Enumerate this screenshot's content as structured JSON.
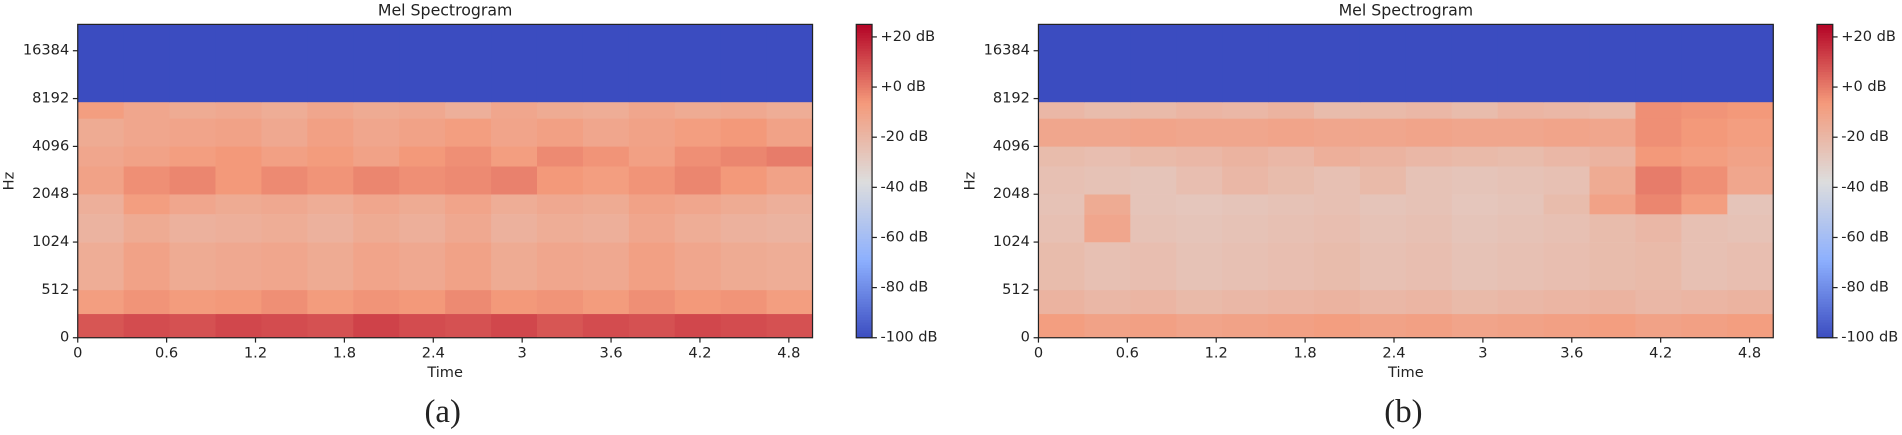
{
  "chart_data": [
    {
      "type": "heatmap",
      "title": "Mel Spectrogram",
      "xlabel": "Time",
      "ylabel": "Hz",
      "caption": "(a)",
      "xlim": [
        0,
        4.96
      ],
      "xticks": [
        0,
        0.6,
        1.2,
        1.8,
        2.4,
        3,
        3.6,
        4.2,
        4.8
      ],
      "ylim": [
        0,
        24000
      ],
      "yticks": [
        0,
        512,
        1024,
        2048,
        4096,
        8192,
        16384
      ],
      "yscale": "symlog",
      "linthresh": 512,
      "cmap": "coolwarm",
      "clim": [
        -100,
        25
      ],
      "cticks": [
        {
          "value": 20,
          "label": "+20 dB"
        },
        {
          "value": 0,
          "label": "+0 dB"
        },
        {
          "value": -20,
          "label": "-20 dB"
        },
        {
          "value": -40,
          "label": "-40 dB"
        },
        {
          "value": -60,
          "label": "-60 dB"
        },
        {
          "value": -80,
          "label": "-80 dB"
        },
        {
          "value": -100,
          "label": "-100 dB"
        }
      ],
      "x_bins": [
        0,
        0.31,
        0.62,
        0.93,
        1.24,
        1.55,
        1.86,
        2.17,
        2.48,
        2.79,
        3.1,
        3.41,
        3.72,
        4.03,
        4.34,
        4.65,
        4.96
      ],
      "y_bins": [
        0,
        256,
        512,
        1024,
        1536,
        2048,
        3072,
        4096,
        6144,
        7800,
        24000
      ],
      "z": [
        [
          8,
          10,
          9,
          11,
          10,
          9,
          12,
          10,
          9,
          11,
          8,
          10,
          9,
          11,
          10,
          9
        ],
        [
          -8,
          -5,
          -7,
          -6,
          -4,
          -7,
          -5,
          -6,
          -3,
          -6,
          -5,
          -7,
          -4,
          -6,
          -5,
          -8
        ],
        [
          -15,
          -10,
          -14,
          -13,
          -12,
          -14,
          -11,
          -13,
          -10,
          -14,
          -12,
          -13,
          -9,
          -12,
          -14,
          -15
        ],
        [
          -18,
          -14,
          -17,
          -16,
          -15,
          -17,
          -14,
          -16,
          -13,
          -17,
          -15,
          -16,
          -12,
          -15,
          -17,
          -18
        ],
        [
          -16,
          -8,
          -12,
          -14,
          -13,
          -15,
          -12,
          -14,
          -11,
          -15,
          -13,
          -14,
          -10,
          -12,
          -14,
          -16
        ],
        [
          -10,
          -4,
          -2,
          -6,
          -3,
          -5,
          -2,
          -4,
          -3,
          -1,
          -6,
          -8,
          -5,
          -2,
          -6,
          -10
        ],
        [
          -12,
          -10,
          -8,
          -6,
          -9,
          -7,
          -10,
          -6,
          -4,
          -8,
          -3,
          -5,
          -9,
          -4,
          -2,
          0
        ],
        [
          -14,
          -12,
          -11,
          -10,
          -13,
          -9,
          -12,
          -10,
          -8,
          -11,
          -9,
          -12,
          -10,
          -8,
          -6,
          -10
        ],
        [
          -8,
          -12,
          -14,
          -13,
          -15,
          -12,
          -14,
          -13,
          -16,
          -12,
          -14,
          -15,
          -12,
          -14,
          -13,
          -15
        ],
        [
          -100,
          -100,
          -100,
          -100,
          -100,
          -100,
          -100,
          -100,
          -100,
          -100,
          -100,
          -100,
          -100,
          -100,
          -100,
          -100
        ]
      ]
    },
    {
      "type": "heatmap",
      "title": "Mel Spectrogram",
      "xlabel": "Time",
      "ylabel": "Hz",
      "caption": "(b)",
      "xlim": [
        0,
        4.96
      ],
      "xticks": [
        0,
        0.6,
        1.2,
        1.8,
        2.4,
        3,
        3.6,
        4.2,
        4.8
      ],
      "ylim": [
        0,
        24000
      ],
      "yticks": [
        0,
        512,
        1024,
        2048,
        4096,
        8192,
        16384
      ],
      "yscale": "symlog",
      "linthresh": 512,
      "cmap": "coolwarm",
      "clim": [
        -100,
        25
      ],
      "cticks": [
        {
          "value": 20,
          "label": "+20 dB"
        },
        {
          "value": 0,
          "label": "+0 dB"
        },
        {
          "value": -20,
          "label": "-20 dB"
        },
        {
          "value": -40,
          "label": "-40 dB"
        },
        {
          "value": -60,
          "label": "-60 dB"
        },
        {
          "value": -80,
          "label": "-80 dB"
        },
        {
          "value": -100,
          "label": "-100 dB"
        }
      ],
      "x_bins": [
        0,
        0.31,
        0.62,
        0.93,
        1.24,
        1.55,
        1.86,
        2.17,
        2.48,
        2.79,
        3.1,
        3.41,
        3.72,
        4.03,
        4.34,
        4.65,
        4.96
      ],
      "y_bins": [
        0,
        256,
        512,
        1024,
        1536,
        2048,
        3072,
        4096,
        6144,
        7800,
        24000
      ],
      "z": [
        [
          -8,
          -10,
          -9,
          -11,
          -10,
          -9,
          -8,
          -10,
          -9,
          -11,
          -10,
          -9,
          -8,
          -10,
          -9,
          -8
        ],
        [
          -18,
          -20,
          -19,
          -21,
          -20,
          -19,
          -18,
          -20,
          -19,
          -21,
          -20,
          -19,
          -18,
          -20,
          -19,
          -18
        ],
        [
          -22,
          -24,
          -23,
          -25,
          -24,
          -23,
          -22,
          -24,
          -23,
          -25,
          -24,
          -23,
          -22,
          -21,
          -24,
          -23
        ],
        [
          -24,
          -12,
          -25,
          -26,
          -25,
          -24,
          -23,
          -25,
          -24,
          -26,
          -25,
          -24,
          -22,
          -20,
          -24,
          -25
        ],
        [
          -25,
          -14,
          -26,
          -27,
          -26,
          -25,
          -24,
          -26,
          -25,
          -27,
          -26,
          -22,
          -10,
          -2,
          -8,
          -26
        ],
        [
          -24,
          -25,
          -26,
          -23,
          -20,
          -22,
          -24,
          -21,
          -25,
          -26,
          -25,
          -24,
          -14,
          0,
          -4,
          -12
        ],
        [
          -22,
          -23,
          -21,
          -20,
          -18,
          -20,
          -16,
          -18,
          -20,
          -21,
          -22,
          -20,
          -18,
          -6,
          -8,
          -10
        ],
        [
          -12,
          -12,
          -11,
          -12,
          -12,
          -11,
          -12,
          -12,
          -11,
          -12,
          -12,
          -11,
          -12,
          -4,
          -6,
          -8
        ],
        [
          -20,
          -22,
          -21,
          -19,
          -20,
          -18,
          -22,
          -21,
          -20,
          -22,
          -19,
          -20,
          -21,
          -4,
          -5,
          -6
        ],
        [
          -100,
          -100,
          -100,
          -100,
          -100,
          -100,
          -100,
          -100,
          -100,
          -100,
          -100,
          -100,
          -100,
          -100,
          -100,
          -100
        ]
      ]
    }
  ]
}
